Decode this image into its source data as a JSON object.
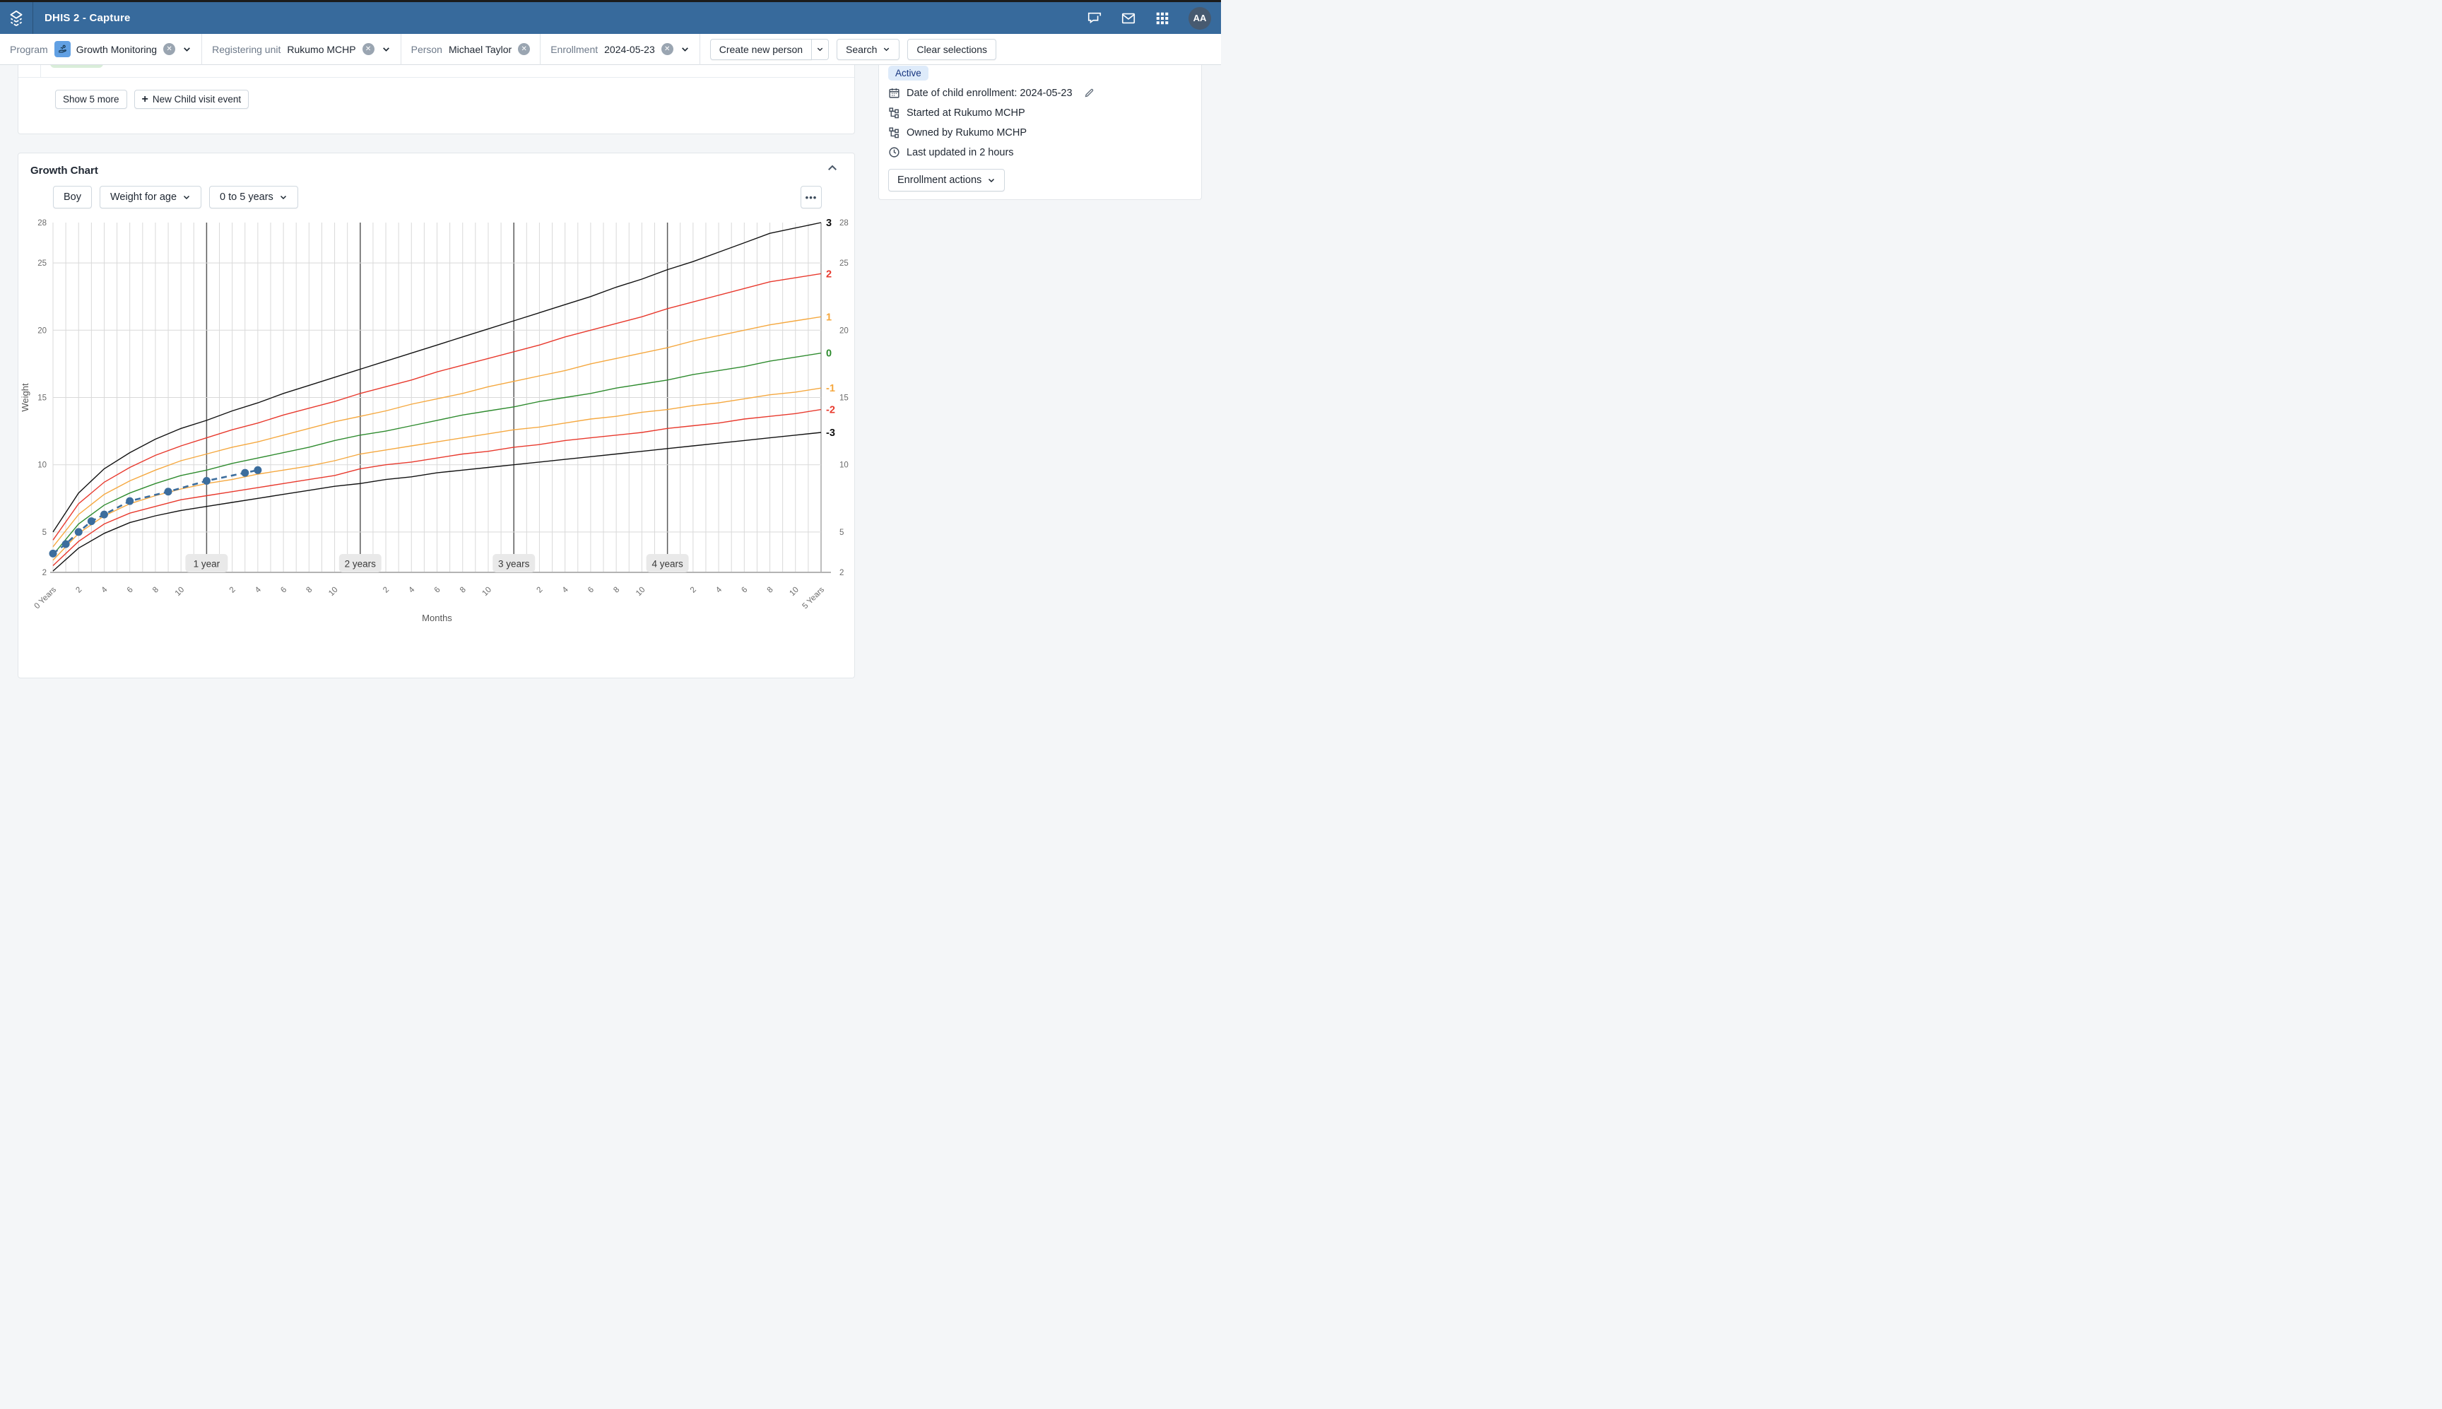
{
  "header": {
    "title": "DHIS 2 - Capture",
    "avatar_initials": "AA"
  },
  "filter": {
    "program": {
      "label": "Program",
      "value": "Growth Monitoring"
    },
    "registering_unit": {
      "label": "Registering unit",
      "value": "Rukumo MCHP"
    },
    "person": {
      "label": "Person",
      "value": "Michael Taylor"
    },
    "enrollment": {
      "label": "Enrollment",
      "value": "2024-05-23"
    },
    "buttons": {
      "create_new_person": "Create new person",
      "search": "Search",
      "clear_selections": "Clear selections"
    }
  },
  "events_card": {
    "show_more_label": "Show 5 more",
    "plus_glyph": "+",
    "new_event_label": "New Child visit event"
  },
  "sidebar": {
    "status": "Active",
    "rows": [
      {
        "icon": "calendar",
        "text": "Date of child enrollment: 2024-05-23"
      },
      {
        "icon": "orgunit",
        "text": "Started at Rukumo MCHP"
      },
      {
        "icon": "orgunit",
        "text": "Owned by Rukumo MCHP"
      },
      {
        "icon": "clock",
        "text": "Last updated in 2 hours"
      }
    ],
    "actions_label": "Enrollment actions"
  },
  "growth": {
    "title": "Growth Chart",
    "controls": {
      "sex": "Boy",
      "indicator": "Weight for age",
      "range": "0 to 5 years"
    },
    "menu_glyph": "•••"
  },
  "chart_data": {
    "type": "line",
    "title": "Growth Chart",
    "xlabel": "Months",
    "ylabel": "Weight",
    "xlim_months": [
      0,
      60
    ],
    "ylim": [
      2,
      28
    ],
    "yticks": [
      2,
      5,
      10,
      15,
      20,
      25,
      28
    ],
    "x_tick_step_months": 2,
    "x_gridline_step_months": 1,
    "x_start_label": "0 Years",
    "x_end_label": "5 Years",
    "year_markers": [
      {
        "month": 12,
        "label": "1 year"
      },
      {
        "month": 24,
        "label": "2 years"
      },
      {
        "month": 36,
        "label": "3 years"
      },
      {
        "month": 48,
        "label": "4 years"
      }
    ],
    "grid_on": true,
    "legend": "none",
    "colors": {
      "grid": "#d9d9d9",
      "axis": "#b3b3b3",
      "year_line": "#5a5a5a",
      "tick_text": "#6b6b6b",
      "axis_title": "#555555",
      "year_pill_bg": "#e9e9e9",
      "year_pill_text": "#3a3a3a"
    },
    "reference_months": [
      0,
      2,
      4,
      6,
      8,
      10,
      12,
      14,
      16,
      18,
      20,
      22,
      24,
      26,
      28,
      30,
      32,
      34,
      36,
      38,
      40,
      42,
      44,
      46,
      48,
      50,
      52,
      54,
      56,
      58,
      60
    ],
    "reference_series": [
      {
        "name": "+3 SD",
        "z_label": "3",
        "color": "#111111",
        "values": [
          5.0,
          7.9,
          9.7,
          10.9,
          11.9,
          12.7,
          13.3,
          14.0,
          14.6,
          15.3,
          15.9,
          16.5,
          17.1,
          17.7,
          18.3,
          18.9,
          19.5,
          20.1,
          20.7,
          21.3,
          21.9,
          22.5,
          23.2,
          23.8,
          24.5,
          25.1,
          25.8,
          26.5,
          27.2,
          27.6,
          28.0
        ]
      },
      {
        "name": "+2 SD",
        "z_label": "2",
        "color": "#e8392d",
        "values": [
          4.4,
          7.1,
          8.7,
          9.8,
          10.7,
          11.4,
          12.0,
          12.6,
          13.1,
          13.7,
          14.2,
          14.7,
          15.3,
          15.8,
          16.3,
          16.9,
          17.4,
          17.9,
          18.4,
          18.9,
          19.5,
          20.0,
          20.5,
          21.0,
          21.6,
          22.1,
          22.6,
          23.1,
          23.6,
          23.9,
          24.2
        ]
      },
      {
        "name": "+1 SD",
        "z_label": "1",
        "color": "#f5a83f",
        "values": [
          3.9,
          6.3,
          7.8,
          8.8,
          9.6,
          10.3,
          10.8,
          11.3,
          11.7,
          12.2,
          12.7,
          13.2,
          13.6,
          14.0,
          14.5,
          14.9,
          15.3,
          15.8,
          16.2,
          16.6,
          17.0,
          17.5,
          17.9,
          18.3,
          18.7,
          19.2,
          19.6,
          20.0,
          20.4,
          20.7,
          21.0
        ]
      },
      {
        "name": "Median",
        "z_label": "0",
        "color": "#2e8b2e",
        "values": [
          3.3,
          5.6,
          7.0,
          7.9,
          8.6,
          9.2,
          9.6,
          10.1,
          10.5,
          10.9,
          11.3,
          11.8,
          12.2,
          12.5,
          12.9,
          13.3,
          13.7,
          14.0,
          14.3,
          14.7,
          15.0,
          15.3,
          15.7,
          16.0,
          16.3,
          16.7,
          17.0,
          17.3,
          17.7,
          18.0,
          18.3
        ]
      },
      {
        "name": "-1 SD",
        "z_label": "-1",
        "color": "#f5a83f",
        "values": [
          2.9,
          4.9,
          6.2,
          7.1,
          7.7,
          8.2,
          8.6,
          8.9,
          9.3,
          9.6,
          9.9,
          10.3,
          10.8,
          11.1,
          11.4,
          11.7,
          12.0,
          12.3,
          12.6,
          12.8,
          13.1,
          13.4,
          13.6,
          13.9,
          14.1,
          14.4,
          14.6,
          14.9,
          15.2,
          15.4,
          15.7
        ]
      },
      {
        "name": "-2 SD",
        "z_label": "-2",
        "color": "#e8392d",
        "values": [
          2.5,
          4.3,
          5.6,
          6.4,
          6.9,
          7.4,
          7.7,
          8.0,
          8.3,
          8.6,
          8.9,
          9.2,
          9.7,
          10.0,
          10.2,
          10.5,
          10.8,
          11.0,
          11.3,
          11.5,
          11.8,
          12.0,
          12.2,
          12.4,
          12.7,
          12.9,
          13.1,
          13.4,
          13.6,
          13.8,
          14.1
        ]
      },
      {
        "name": "-3 SD",
        "z_label": "-3",
        "color": "#111111",
        "values": [
          2.1,
          3.8,
          4.9,
          5.7,
          6.2,
          6.6,
          6.9,
          7.2,
          7.5,
          7.8,
          8.1,
          8.4,
          8.6,
          8.9,
          9.1,
          9.4,
          9.6,
          9.8,
          10.0,
          10.2,
          10.4,
          10.6,
          10.8,
          11.0,
          11.2,
          11.4,
          11.6,
          11.8,
          12.0,
          12.2,
          12.4
        ]
      }
    ],
    "child_series": {
      "name": "Child weight",
      "color": "#3c6d9d",
      "months": [
        0,
        1,
        2,
        3,
        4,
        6,
        9,
        12,
        15,
        16
      ],
      "values": [
        3.4,
        4.1,
        5.0,
        5.8,
        6.3,
        7.3,
        8.0,
        8.8,
        9.4,
        9.6
      ]
    }
  }
}
